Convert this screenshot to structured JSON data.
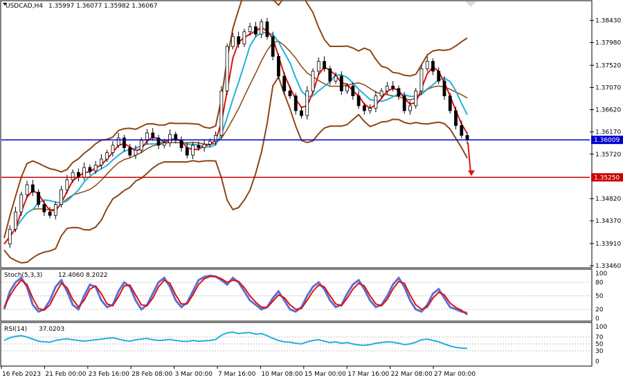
{
  "chart_data": {
    "type": "candlestick",
    "symbol_header": "USDCAD,H4",
    "ohlc_header": "1.35997 1.36077 1.35982 1.36067",
    "price_axis": {
      "ticks": [
        "1.38430",
        "1.37980",
        "1.37520",
        "1.37070",
        "1.36620",
        "1.36170",
        "1.35720",
        "1.34820",
        "1.34370",
        "1.33910",
        "1.33460"
      ],
      "range": [
        1.3346,
        1.388
      ]
    },
    "price_levels": [
      {
        "value": 1.36009,
        "label": "1.36009",
        "color": "#0000cc"
      },
      {
        "value": 1.3525,
        "label": "1.35250",
        "color": "#cc0000"
      }
    ],
    "time_labels": [
      "16 Feb 2023",
      "21 Feb 00:00",
      "23 Feb 16:00",
      "28 Feb 08:00",
      "3 Mar 00:00",
      "7 Mar 16:00",
      "10 Mar 08:00",
      "15 Mar 00:00",
      "17 Mar 16:00",
      "22 Mar 08:00",
      "27 Mar 00:00"
    ],
    "closes": [
      1.339,
      1.342,
      1.3455,
      1.349,
      1.351,
      1.3495,
      1.347,
      1.3455,
      1.3448,
      1.347,
      1.35,
      1.352,
      1.3535,
      1.3525,
      1.3545,
      1.3538,
      1.355,
      1.3562,
      1.3575,
      1.359,
      1.3605,
      1.3585,
      1.357,
      1.358,
      1.36,
      1.3615,
      1.3605,
      1.359,
      1.3595,
      1.3612,
      1.36,
      1.3585,
      1.357,
      1.359,
      1.3585,
      1.3592,
      1.3598,
      1.361,
      1.37,
      1.379,
      1.381,
      1.3795,
      1.382,
      1.383,
      1.3815,
      1.384,
      1.381,
      1.377,
      1.373,
      1.37,
      1.369,
      1.366,
      1.365,
      1.37,
      1.374,
      1.376,
      1.3745,
      1.372,
      1.373,
      1.37,
      1.371,
      1.369,
      1.367,
      1.366,
      1.3665,
      1.369,
      1.37,
      1.371,
      1.3705,
      1.369,
      1.366,
      1.367,
      1.37,
      1.3745,
      1.376,
      1.374,
      1.372,
      1.369,
      1.366,
      1.363,
      1.361,
      1.3601
    ],
    "indicators": [
      {
        "name": "Stoch(5,3,3)",
        "value_text": "12.4060 8.2022",
        "levels": [
          "100",
          "80",
          "50",
          "20",
          "0"
        ],
        "range": [
          0,
          100
        ],
        "main": [
          20,
          60,
          80,
          90,
          70,
          30,
          15,
          20,
          40,
          70,
          85,
          60,
          30,
          20,
          50,
          75,
          70,
          40,
          25,
          30,
          60,
          80,
          70,
          40,
          20,
          30,
          55,
          80,
          90,
          70,
          40,
          25,
          35,
          60,
          85,
          92,
          95,
          93,
          85,
          75,
          90,
          80,
          60,
          40,
          30,
          20,
          25,
          45,
          60,
          40,
          20,
          15,
          25,
          50,
          70,
          80,
          65,
          40,
          25,
          30,
          55,
          75,
          85,
          65,
          40,
          25,
          30,
          50,
          75,
          90,
          70,
          40,
          20,
          15,
          30,
          55,
          65,
          45,
          25,
          20,
          15,
          12
        ],
        "signal": [
          25,
          50,
          70,
          85,
          75,
          45,
          22,
          18,
          30,
          55,
          78,
          68,
          42,
          25,
          40,
          65,
          72,
          55,
          32,
          28,
          48,
          72,
          74,
          52,
          30,
          28,
          45,
          70,
          85,
          78,
          52,
          32,
          32,
          52,
          75,
          88,
          93,
          93,
          88,
          80,
          85,
          82,
          68,
          50,
          36,
          25,
          24,
          38,
          52,
          46,
          30,
          20,
          22,
          40,
          60,
          74,
          70,
          50,
          32,
          28,
          45,
          65,
          78,
          72,
          50,
          32,
          28,
          42,
          65,
          82,
          78,
          52,
          30,
          20,
          25,
          45,
          58,
          52,
          34,
          24,
          18,
          8
        ]
      },
      {
        "name": "RSI(14)",
        "value_text": "37.0203",
        "levels": [
          "100",
          "70",
          "50",
          "30",
          "0"
        ],
        "range": [
          0,
          100
        ],
        "values": [
          60,
          68,
          72,
          74,
          70,
          64,
          58,
          56,
          55,
          60,
          63,
          65,
          62,
          60,
          58,
          60,
          62,
          64,
          66,
          68,
          64,
          60,
          58,
          62,
          64,
          66,
          62,
          60,
          61,
          63,
          60,
          58,
          57,
          60,
          58,
          59,
          60,
          63,
          75,
          82,
          84,
          80,
          82,
          83,
          78,
          80,
          74,
          66,
          60,
          56,
          55,
          52,
          50,
          56,
          60,
          62,
          58,
          54,
          56,
          52,
          54,
          50,
          47,
          46,
          48,
          52,
          54,
          56,
          55,
          52,
          48,
          50,
          55,
          62,
          64,
          60,
          56,
          50,
          44,
          40,
          38,
          37
        ]
      }
    ]
  }
}
